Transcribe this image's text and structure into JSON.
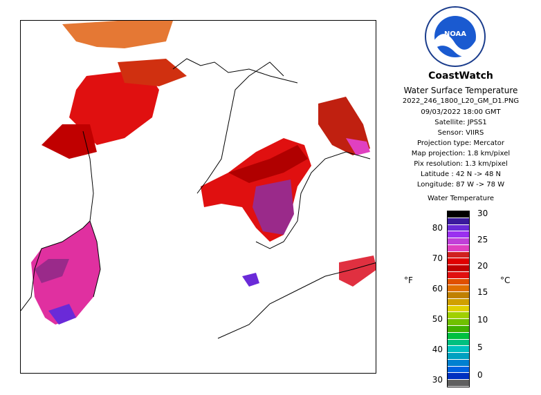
{
  "header": {
    "brand": "CoastWatch",
    "product": "Water Surface Temperature"
  },
  "metadata": {
    "filename": "2022_246_1800_L20_GM_D1.PNG",
    "date_time": "09/03/2022    18:00 GMT",
    "satellite": "Satellite: JPSS1",
    "sensor": "Sensor: VIIRS",
    "projection_type": "Projection type:  Mercator",
    "map_projection": "Map projection: 1.8 km/pixel",
    "pix_resolution": "Pix resolution: 1.3 km/pixel",
    "latitude": "Latitude : 42 N -> 48 N",
    "longitude": "Longitude: 87 W -> 78 W"
  },
  "legend": {
    "title": "Water Temperature",
    "unit_f": "°F",
    "unit_c": "°C",
    "f_ticks": [
      "80",
      "70",
      "60",
      "50",
      "40",
      "30"
    ],
    "c_ticks": [
      "30",
      "25",
      "20",
      "15",
      "10",
      "5",
      "0"
    ],
    "colors": [
      "#000000",
      "#3a1a9c",
      "#6a2ad8",
      "#9a30f0",
      "#c040d8",
      "#e040c0",
      "#d02020",
      "#e00000",
      "#c00000",
      "#e01010",
      "#e05000",
      "#e07000",
      "#c08000",
      "#d0a000",
      "#e0d000",
      "#a0d000",
      "#70c000",
      "#40b000",
      "#00c040",
      "#00c080",
      "#00c0c0",
      "#00a0c0",
      "#0080d0",
      "#0060e0",
      "#0030c0",
      "#606060"
    ]
  },
  "map": {
    "logo_text": "NOAA"
  }
}
